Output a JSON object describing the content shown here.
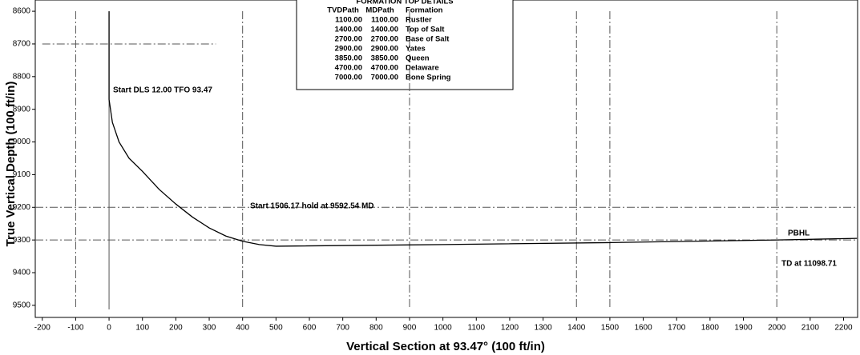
{
  "chart_data": {
    "type": "line",
    "x_label": "Vertical Section at 93.47° (100 ft/in)",
    "y_label": "True Vertical Depth (100 ft/in)",
    "xlim": [
      -221,
      2242
    ],
    "ylim": [
      8590,
      9537
    ],
    "y_inverted": true,
    "xticks": [
      -200,
      -100,
      0,
      100,
      200,
      300,
      400,
      500,
      600,
      700,
      800,
      900,
      1000,
      1100,
      1200,
      1300,
      1400,
      1500,
      1600,
      1700,
      1800,
      1900,
      2000,
      2100,
      2200
    ],
    "yticks": [
      8600,
      8700,
      8800,
      8900,
      9000,
      9100,
      9200,
      9300,
      9400,
      9500
    ],
    "vlines": [
      -100,
      0,
      400,
      900,
      1400,
      1500,
      2000
    ],
    "hlines": [
      8700,
      9200,
      9300
    ],
    "series": [
      {
        "color": "#000000",
        "x": [
          0,
          0,
          10,
          30,
          60,
          100,
          150,
          200,
          250,
          300,
          350,
          400,
          450,
          500,
          1000,
          1500,
          2000,
          2240
        ],
        "values": [
          8600,
          8870,
          8940,
          9000,
          9050,
          9090,
          9145,
          9190,
          9230,
          9263,
          9288,
          9304,
          9314,
          9319,
          9314,
          9308,
          9300,
          9295
        ]
      }
    ],
    "annotations": [
      "Start DLS 12.00 TFO 93.47",
      "Start 1506.17 hold at 9592.54 MD",
      "PBHL",
      "TD at 11098.71"
    ],
    "table": {
      "title": "FORMATION TOP DETAILS",
      "columns": [
        "TVDPath",
        "MDPath",
        "Formation"
      ],
      "rows": [
        [
          "1100.00",
          "1100.00",
          "Rustler"
        ],
        [
          "1400.00",
          "1400.00",
          "Top of Salt"
        ],
        [
          "2700.00",
          "2700.00",
          "Base of Salt"
        ],
        [
          "2900.00",
          "2900.00",
          "Yates"
        ],
        [
          "3850.00",
          "3850.00",
          "Queen"
        ],
        [
          "4700.00",
          "4700.00",
          "Delaware"
        ],
        [
          "7000.00",
          "7000.00",
          "Bone Spring"
        ]
      ]
    }
  }
}
